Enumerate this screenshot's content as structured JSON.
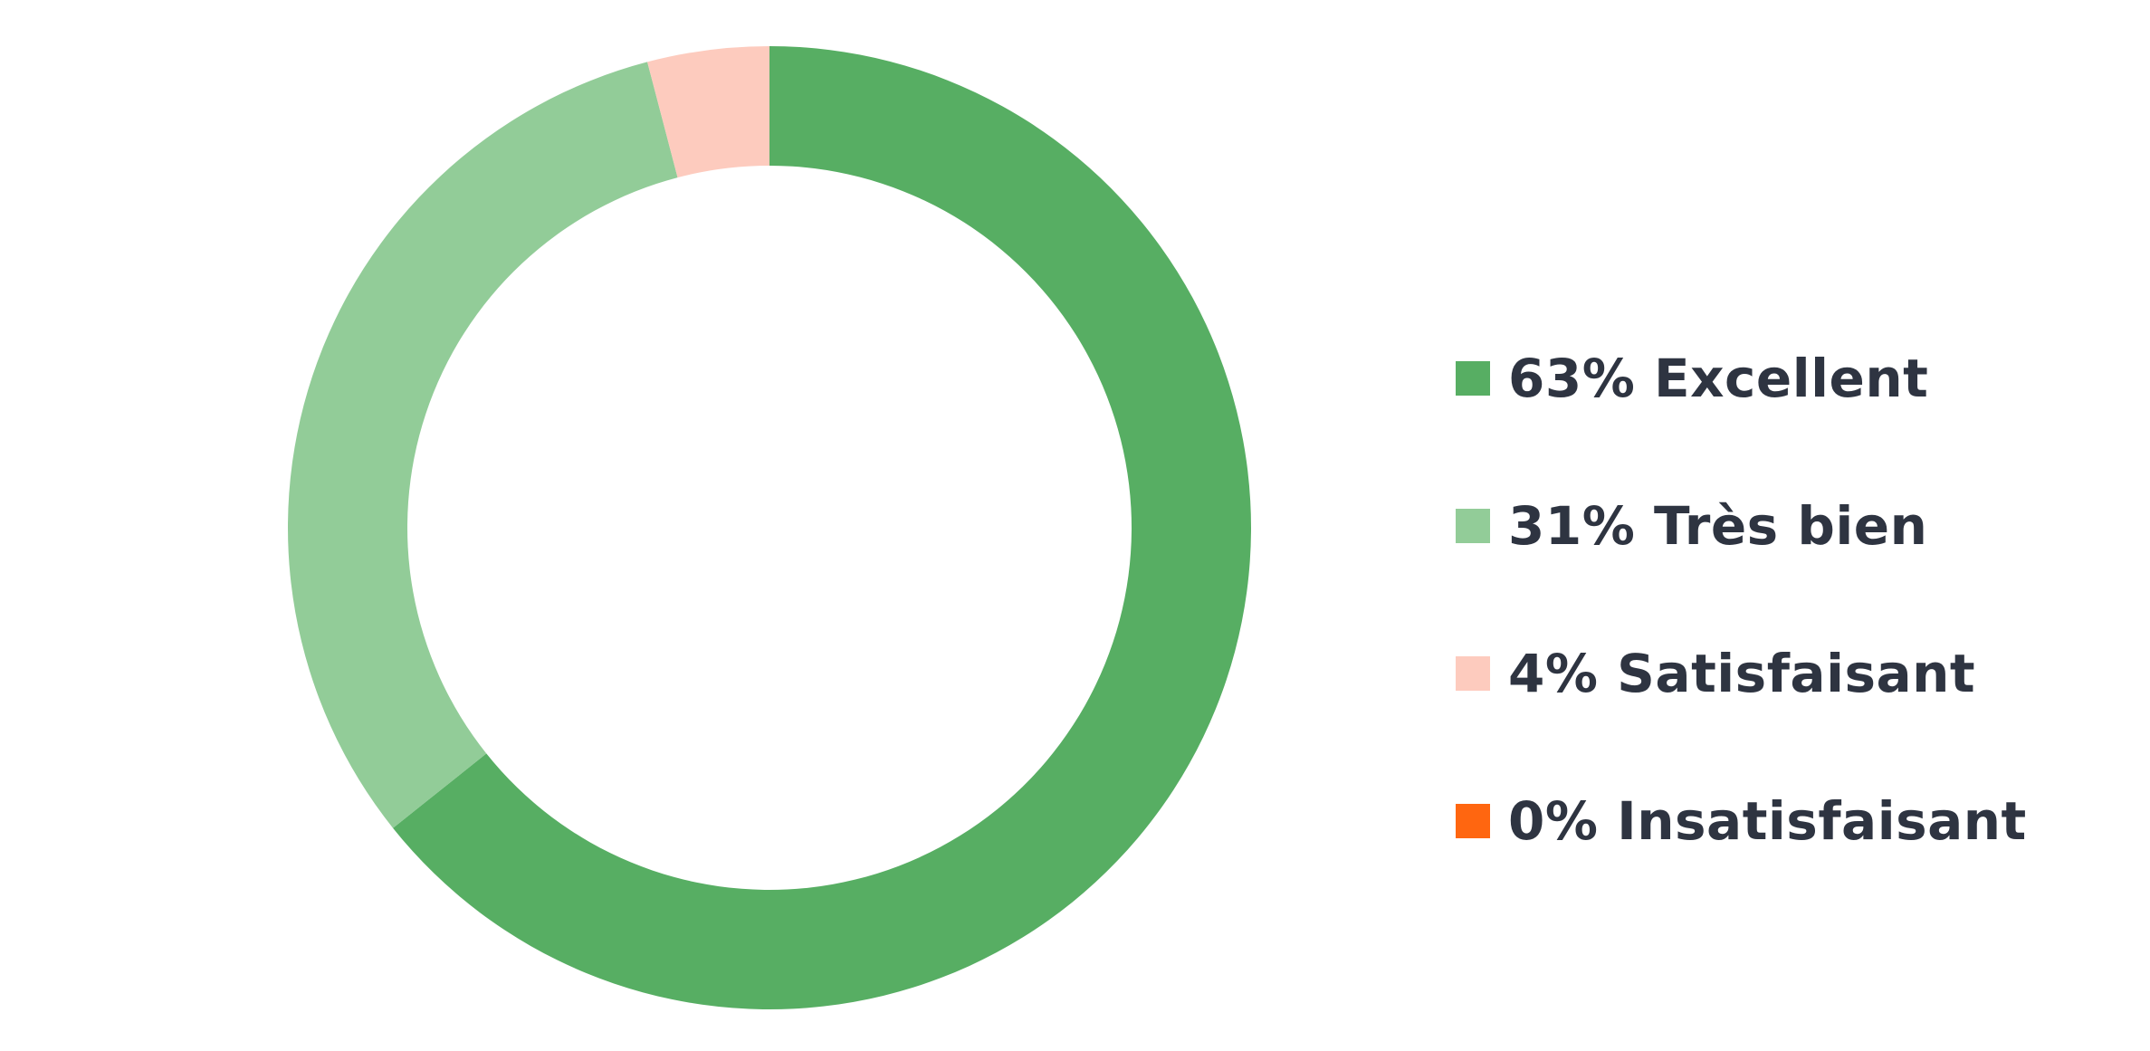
{
  "chart_data": {
    "type": "pie",
    "variant": "donut",
    "title": "",
    "slices": [
      {
        "label": "Excellent",
        "value": 63,
        "display": "63% Excellent",
        "color": "#57ae63"
      },
      {
        "label": "Très bien",
        "value": 31,
        "display": "31% Très bien",
        "color": "#92cc98"
      },
      {
        "label": "Satisfaisant",
        "value": 4,
        "display": "4% Satisfaisant",
        "color": "#fdcbbe"
      },
      {
        "label": "Insatisfaisant",
        "value": 0,
        "display": "0% Insatisfaisant",
        "color": "#ff6610"
      }
    ],
    "legend_position": "right",
    "start_angle": "top",
    "direction": "clockwise"
  }
}
